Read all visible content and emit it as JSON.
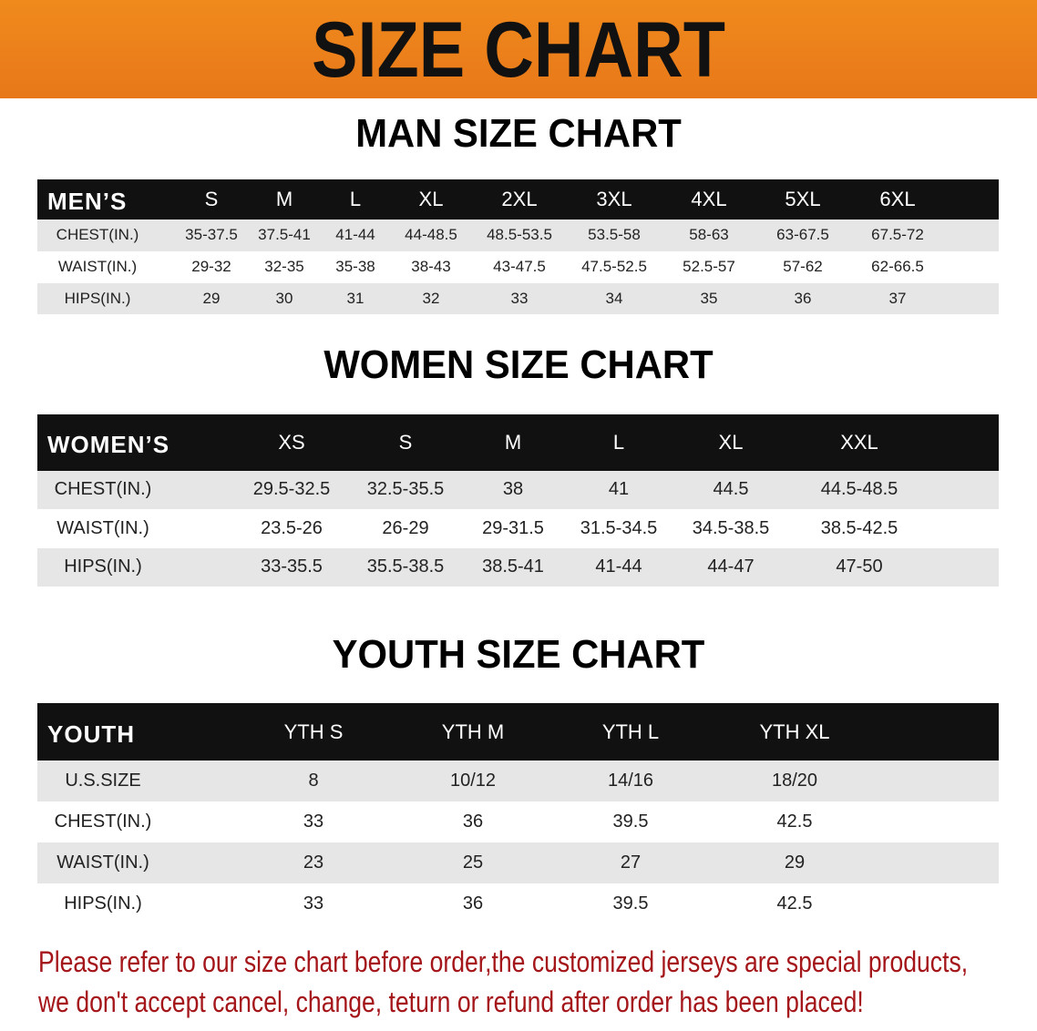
{
  "banner": {
    "title": "SIZE CHART"
  },
  "sections": [
    {
      "title": "MAN SIZE CHART",
      "header": [
        "MEN’S",
        "S",
        "M",
        "L",
        "XL",
        "2XL",
        "3XL",
        "4XL",
        "5XL",
        "6XL"
      ],
      "rows": [
        [
          "CHEST(IN.)",
          "35-37.5",
          "37.5-41",
          "41-44",
          "44-48.5",
          "48.5-53.5",
          "53.5-58",
          "58-63",
          "63-67.5",
          "67.5-72"
        ],
        [
          "WAIST(IN.)",
          "29-32",
          "32-35",
          "35-38",
          "38-43",
          "43-47.5",
          "47.5-52.5",
          "52.5-57",
          "57-62",
          "62-66.5"
        ],
        [
          "HIPS(IN.)",
          "29",
          "30",
          "31",
          "32",
          "33",
          "34",
          "35",
          "36",
          "37"
        ]
      ]
    },
    {
      "title": "WOMEN SIZE CHART",
      "header": [
        "WOMEN’S",
        "XS",
        "S",
        "M",
        "L",
        "XL",
        "XXL"
      ],
      "rows": [
        [
          "CHEST(IN.)",
          "29.5-32.5",
          "32.5-35.5",
          "38",
          "41",
          "44.5",
          "44.5-48.5"
        ],
        [
          "WAIST(IN.)",
          "23.5-26",
          "26-29",
          "29-31.5",
          "31.5-34.5",
          "34.5-38.5",
          "38.5-42.5"
        ],
        [
          "HIPS(IN.)",
          "33-35.5",
          "35.5-38.5",
          "38.5-41",
          "41-44",
          "44-47",
          "47-50"
        ]
      ]
    },
    {
      "title": "YOUTH SIZE CHART",
      "header": [
        "YOUTH",
        "YTH S",
        "YTH M",
        "YTH L",
        "YTH XL"
      ],
      "rows": [
        [
          "U.S.SIZE",
          "8",
          "10/12",
          "14/16",
          "18/20"
        ],
        [
          "CHEST(IN.)",
          "33",
          "36",
          "39.5",
          "42.5"
        ],
        [
          "WAIST(IN.)",
          "23",
          "25",
          "27",
          "29"
        ],
        [
          "HIPS(IN.)",
          "33",
          "36",
          "39.5",
          "42.5"
        ]
      ]
    }
  ],
  "notice": [
    "Please refer to our size chart before order,the customized jerseys are special products,",
    "we don't accept cancel, change, teturn or refund after order has been placed!"
  ]
}
